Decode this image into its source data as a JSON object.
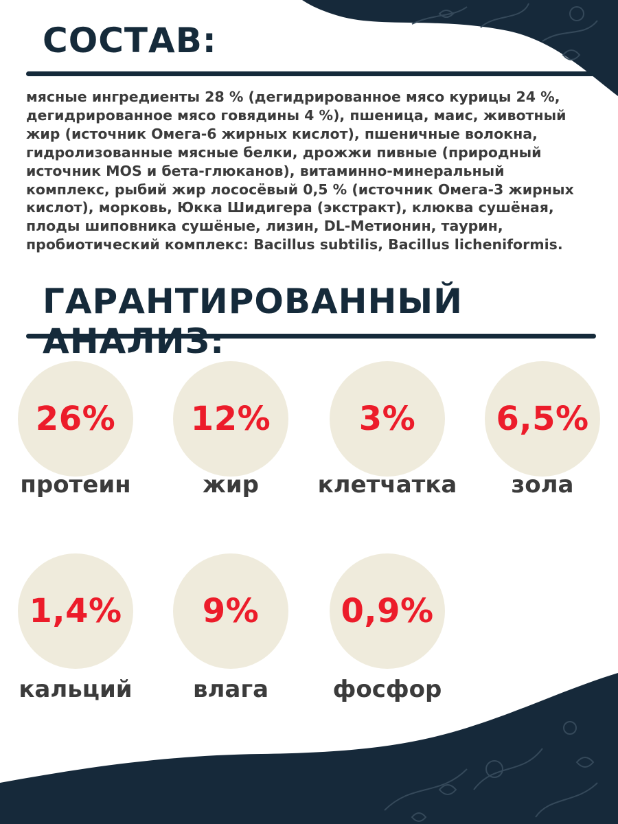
{
  "sections": {
    "composition_title": "СОСТАВ:",
    "composition_text": "мясные ингредиенты 28 % (дегидрированное мясо курицы 24 %, дегидрированное мясо говядины 4 %), пшеница, маис, животный жир (источник Омега-6 жирных кислот), пшеничные волокна, гидролизованные мясные белки, дрожжи пивные (природный источник MOS и бета-глюканов), витаминно-минеральный комплекс, рыбий жир лососёвый 0,5 % (источник Омега-3 жирных кислот), морковь, Юкка Шидигера (экстракт), клюква сушёная, плоды шиповника сушёные, лизин, DL-Метионин, таурин, пробиотический комплекс: Bacillus subtilis, Bacillus licheniformis.",
    "analysis_title": "ГАРАНТИРОВАННЫЙ АНАЛИЗ:"
  },
  "analysis": [
    {
      "value": "26%",
      "label": "протеин"
    },
    {
      "value": "12%",
      "label": "жир"
    },
    {
      "value": "3%",
      "label": "клетчатка"
    },
    {
      "value": "6,5%",
      "label": "зола"
    },
    {
      "value": "1,4%",
      "label": "кальций"
    },
    {
      "value": "9%",
      "label": "влага"
    },
    {
      "value": "0,9%",
      "label": "фосфор"
    }
  ],
  "colors": {
    "heading": "#152a3a",
    "value": "#ec1c2a",
    "circle": "#efebdc",
    "text": "#3b3b3b",
    "decor": "#16293a"
  }
}
